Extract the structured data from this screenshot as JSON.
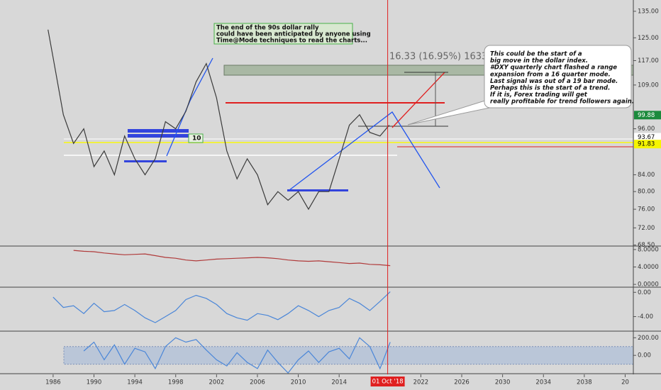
{
  "chart_data": [
    {
      "type": "line",
      "color": "#3a3a3a",
      "log_scale": true,
      "x": [
        1985.5,
        1986,
        1987,
        1988,
        1989,
        1990,
        1991,
        1992,
        1993,
        1994,
        1995,
        1996,
        1997,
        1998,
        1999,
        2000,
        2001,
        2002,
        2003,
        2004,
        2005,
        2006,
        2007,
        2008,
        2009,
        2010,
        2011,
        2012,
        2013,
        2014,
        2015,
        2016,
        2017,
        2018,
        2018.9
      ],
      "values": [
        128,
        118,
        100,
        92,
        96,
        86,
        90,
        84,
        94,
        88,
        84,
        88,
        98,
        96,
        101,
        110,
        116,
        105,
        90,
        83,
        88,
        84,
        77,
        80,
        78,
        80,
        76,
        80,
        80,
        88,
        97,
        100,
        95,
        94,
        97
      ],
      "xlim": [
        1980.8,
        2042.8
      ],
      "xticks": [
        1986,
        1990,
        1994,
        1998,
        2002,
        2006,
        2010,
        2014,
        2022,
        2026,
        2030,
        2034,
        2038,
        {
          "value": 2042,
          "label": "20"
        }
      ],
      "ylim": [
        68.3,
        139.5
      ],
      "yticks": [
        {
          "value": 135,
          "label": "135.00"
        },
        {
          "value": 125,
          "label": "125.00"
        },
        {
          "value": 117,
          "label": "117.00"
        },
        {
          "value": 109,
          "label": "109.00"
        },
        {
          "value": 96,
          "label": "96.00"
        },
        {
          "value": 84,
          "label": "84.00"
        },
        {
          "value": 80,
          "label": "80.00"
        },
        {
          "value": 76,
          "label": "76.00"
        },
        {
          "value": 72,
          "label": "72.00"
        },
        {
          "value": 68.5,
          "label": "68.50"
        }
      ],
      "price_badges": [
        {
          "value": 99.88,
          "color": "#1b8a3c"
        },
        {
          "value": 93.67,
          "color": "#ffffff"
        },
        {
          "value": 91.83,
          "color": "#f5f500"
        }
      ],
      "crosshair": {
        "x": 2018.75,
        "label": "01 Oct '18"
      },
      "annotations": {
        "top_note": [
          "The end of the 90s dollar rally",
          "could have been anticipated by anyone using",
          "Time@Mode techniques to read the charts..."
        ],
        "measure": "16.33 (16.95%) 1633",
        "count": "10",
        "callout": [
          "This could be the start of a",
          "big move in the dollar index.",
          "#DXY quarterly chart flashed a range",
          "expansion from a 16 quarter mode.",
          "Last signal was out of a 19 bar mode.",
          "Perhaps this is the start of a trend.",
          "If it is, Forex trading will get",
          "really profitable for trend followers again."
        ]
      }
    },
    {
      "type": "line",
      "color": "#b03a3a",
      "x": [
        1988,
        1989,
        1990,
        1991,
        1992,
        1993,
        1994,
        1995,
        1996,
        1997,
        1998,
        1999,
        2000,
        2001,
        2002,
        2003,
        2004,
        2005,
        2006,
        2007,
        2008,
        2009,
        2010,
        2011,
        2012,
        2013,
        2014,
        2015,
        2016,
        2017,
        2018,
        2019
      ],
      "values": [
        7.8,
        7.6,
        7.5,
        7.2,
        7.0,
        6.8,
        6.9,
        7.0,
        6.6,
        6.2,
        6.0,
        5.6,
        5.4,
        5.6,
        5.8,
        5.9,
        6.0,
        6.1,
        6.2,
        6.1,
        5.9,
        5.6,
        5.4,
        5.3,
        5.4,
        5.2,
        5.0,
        4.8,
        4.9,
        4.6,
        4.5,
        4.3
      ],
      "ylim": [
        -0.64,
        8.8
      ],
      "yticks": [
        {
          "value": 8,
          "label": "8.0000"
        },
        {
          "value": 4,
          "label": "4.0000"
        },
        {
          "value": 0,
          "label": "0.0000"
        }
      ]
    },
    {
      "type": "line",
      "color": "#4a86d8",
      "x": [
        1986,
        1987,
        1988,
        1989,
        1990,
        1991,
        1992,
        1993,
        1994,
        1995,
        1996,
        1997,
        1998,
        1999,
        2000,
        2001,
        2002,
        2003,
        2004,
        2005,
        2006,
        2007,
        2008,
        2009,
        2010,
        2011,
        2012,
        2013,
        2014,
        2015,
        2016,
        2017,
        2018,
        2019
      ],
      "values": [
        -0.8,
        -2.5,
        -2.2,
        -3.5,
        -1.8,
        -3.2,
        -3.0,
        -2.0,
        -3.0,
        -4.2,
        -5.0,
        -4.0,
        -3.0,
        -1.2,
        -0.5,
        -1.0,
        -2.0,
        -3.5,
        -4.2,
        -4.6,
        -3.5,
        -3.8,
        -4.5,
        -3.5,
        -2.2,
        -3.0,
        -4.0,
        -3.0,
        -2.5,
        -1.0,
        -1.8,
        -3.0,
        -1.5,
        0.1
      ],
      "ylim": [
        -6.4,
        0.85
      ],
      "yticks": [
        {
          "value": 0,
          "label": "0.00"
        },
        {
          "value": -4,
          "label": "-4.00"
        }
      ]
    },
    {
      "type": "line",
      "color": "#4a86d8",
      "x": [
        1989,
        1990,
        1991,
        1992,
        1993,
        1994,
        1995,
        1996,
        1997,
        1998,
        1999,
        2000,
        2001,
        2002,
        2003,
        2004,
        2005,
        2006,
        2007,
        2008,
        2009,
        2010,
        2011,
        2012,
        2013,
        2014,
        2015,
        2016,
        2017,
        2018,
        2019
      ],
      "values": [
        50,
        150,
        -50,
        120,
        -100,
        80,
        40,
        -150,
        100,
        200,
        150,
        180,
        60,
        -50,
        -120,
        30,
        -80,
        -150,
        60,
        -80,
        -200,
        -50,
        50,
        -80,
        40,
        80,
        -40,
        200,
        100,
        -150,
        150
      ],
      "ylim": [
        -208,
        275
      ],
      "band": [
        -100,
        100
      ],
      "yticks": [
        {
          "value": 200,
          "label": "200.00"
        },
        {
          "value": 0,
          "label": "0.00"
        }
      ]
    }
  ]
}
